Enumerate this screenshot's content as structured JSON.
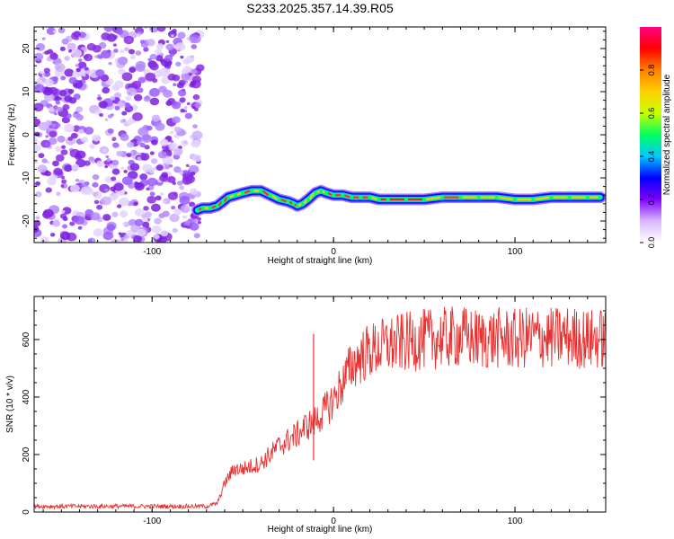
{
  "title": "S233.2025.357.14.39.R05",
  "chart_data": [
    {
      "type": "heatmap",
      "title": "S233.2025.357.14.39.R05",
      "xlabel": "Height of straight line (km)",
      "ylabel": "Frequency (Hz)",
      "xlim": [
        -165,
        150
      ],
      "ylim": [
        -25,
        25
      ],
      "x_ticks": [
        -100,
        0,
        100
      ],
      "y_ticks": [
        -20,
        -10,
        0,
        10,
        20
      ],
      "noise_region_x": [
        -165,
        -73
      ],
      "ridge": {
        "x": [
          -75,
          -72,
          -68,
          -64,
          -61,
          -58,
          -54,
          -50,
          -45,
          -40,
          -35,
          -30,
          -25,
          -22,
          -20,
          -17,
          -14,
          -10,
          -7,
          -4,
          0,
          5,
          10,
          15,
          20,
          25,
          30,
          40,
          50,
          60,
          70,
          80,
          90,
          100,
          110,
          120,
          130,
          140,
          147
        ],
        "freq": [
          -17.5,
          -17,
          -17,
          -16.5,
          -15.5,
          -14.5,
          -14,
          -13.5,
          -13,
          -13,
          -14,
          -15,
          -15.5,
          -16,
          -16.5,
          -16,
          -15,
          -13.5,
          -13,
          -13.5,
          -14,
          -14,
          -14.5,
          -14.5,
          -14.5,
          -15,
          -15,
          -15,
          -15,
          -14.5,
          -14.5,
          -14.5,
          -14.5,
          -15,
          -15,
          -14.5,
          -14.5,
          -14.5,
          -14.5
        ]
      },
      "colorbar": {
        "label": "Normalized spectral amplitude",
        "ticks": [
          "0.0",
          "0.2",
          "0.4",
          "0.6",
          "0.8"
        ],
        "stops": [
          "#ffffff",
          "#d9b8ff",
          "#8000ff",
          "#0000ff",
          "#00c8ff",
          "#00ff60",
          "#c8ff00",
          "#ffd000",
          "#ff8000",
          "#ff0000",
          "#ff0080"
        ]
      }
    },
    {
      "type": "line",
      "xlabel": "Height of straight line (km)",
      "ylabel": "SNR (10 * v/v)",
      "xlim": [
        -165,
        150
      ],
      "ylim": [
        0,
        750
      ],
      "x_ticks": [
        -100,
        0,
        100
      ],
      "y_ticks": [
        0,
        200,
        400,
        600
      ],
      "color": "#e8302f",
      "series": [
        {
          "name": "SNR",
          "x": [
            -165,
            -140,
            -110,
            -80,
            -70,
            -64,
            -60,
            -55,
            -50,
            -45,
            -40,
            -35,
            -30,
            -25,
            -20,
            -15,
            -11,
            -8,
            -5,
            0,
            5,
            10,
            15,
            20,
            25,
            30,
            40,
            50,
            60,
            70,
            80,
            90,
            100,
            110,
            120,
            130,
            140,
            150
          ],
          "y": [
            20,
            20,
            20,
            20,
            20,
            30,
            100,
            150,
            150,
            160,
            170,
            200,
            230,
            250,
            270,
            300,
            310,
            330,
            350,
            390,
            450,
            510,
            540,
            560,
            570,
            580,
            590,
            600,
            605,
            610,
            600,
            605,
            600,
            610,
            605,
            610,
            600,
            605
          ]
        }
      ],
      "annotations": [
        {
          "x": -11,
          "y": 620,
          "text": ""
        }
      ]
    }
  ]
}
